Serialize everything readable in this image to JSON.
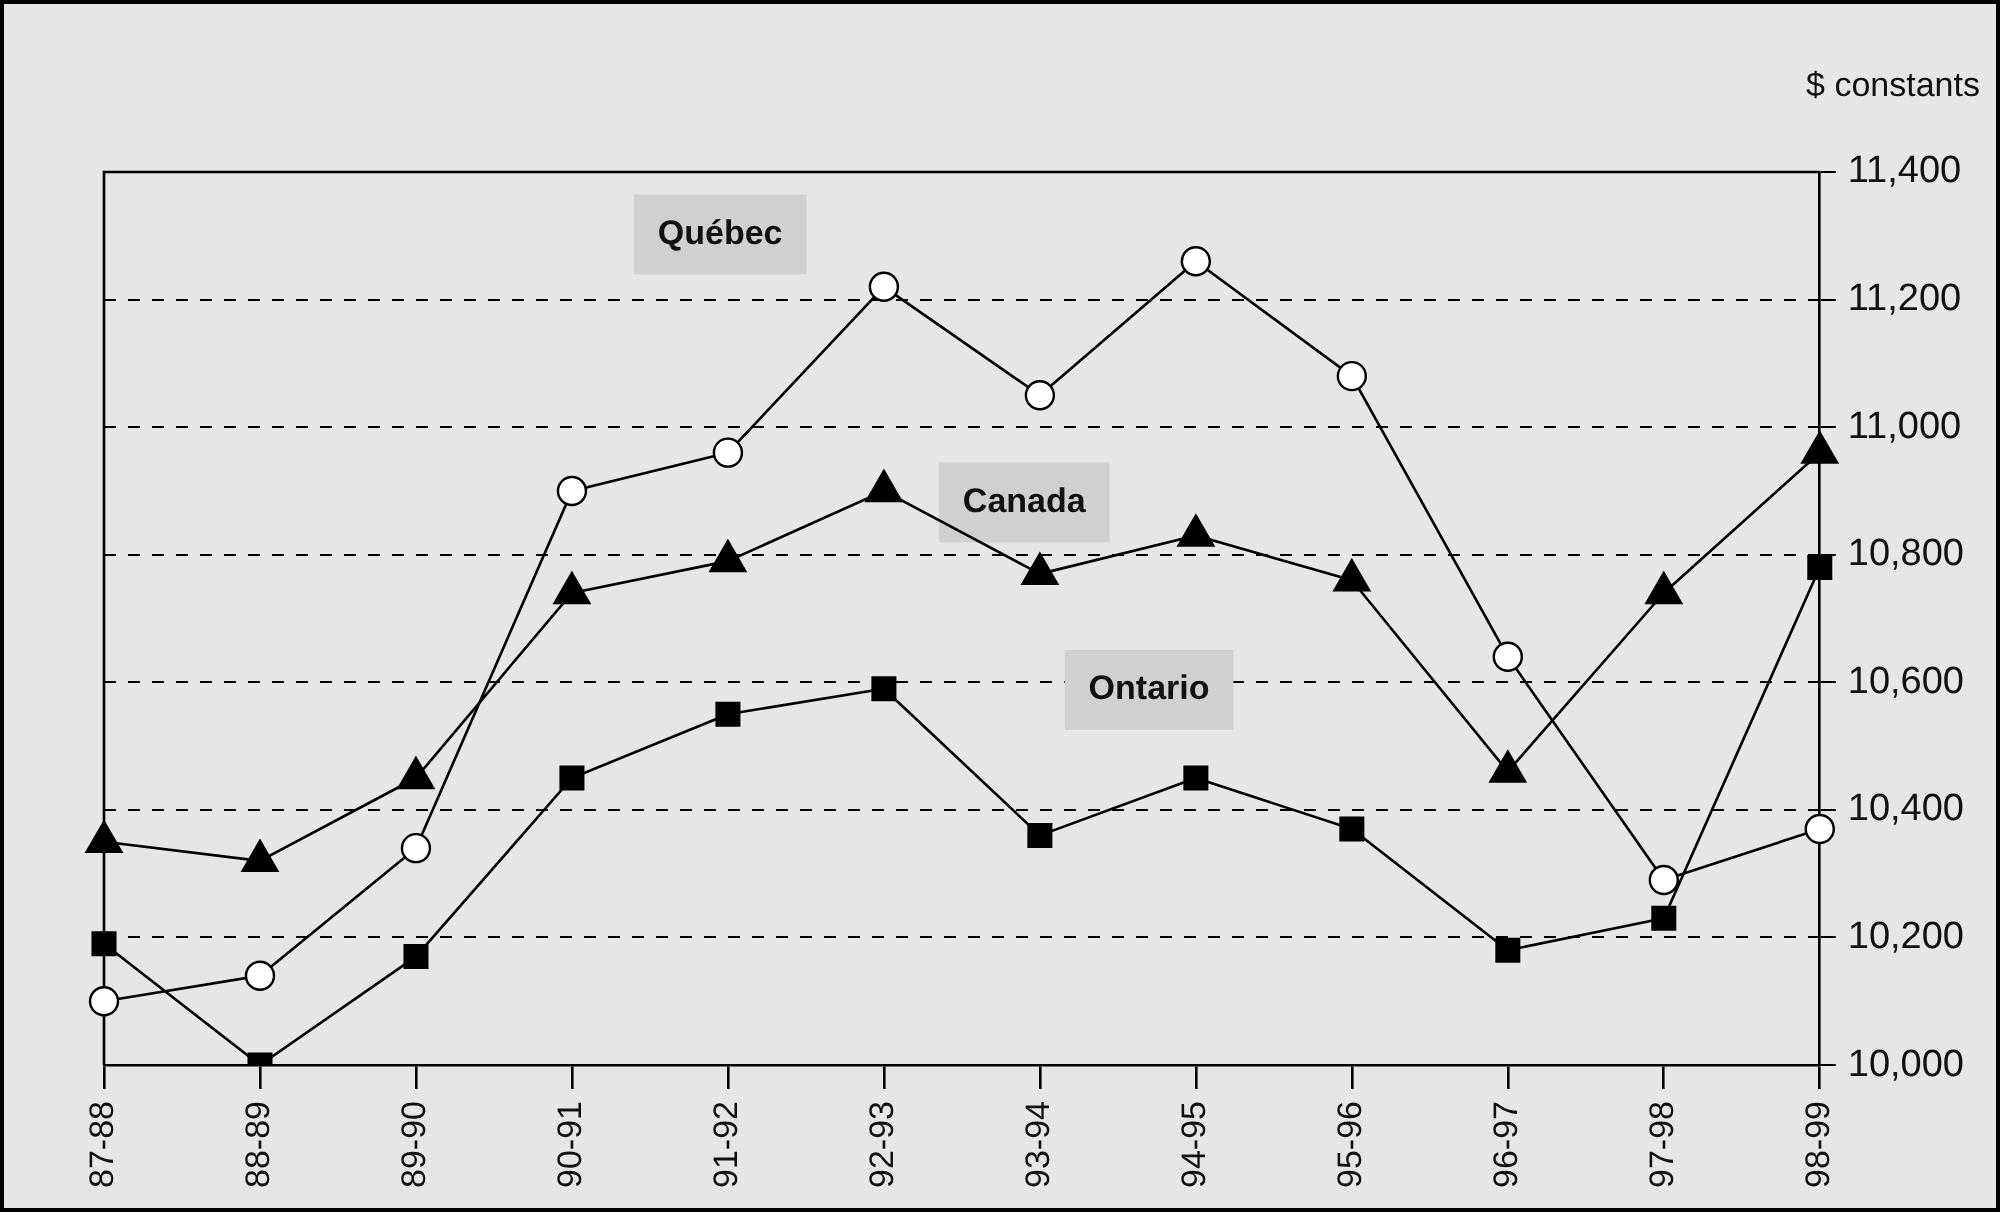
{
  "chart_data": {
    "type": "line",
    "ylabel": "$ constants",
    "categories": [
      "87-88",
      "88-89",
      "89-90",
      "90-91",
      "91-92",
      "92-93",
      "93-94",
      "94-95",
      "95-96",
      "96-97",
      "97-98",
      "98-99"
    ],
    "series": [
      {
        "name": "Québec",
        "color": "#000000",
        "marker": "circle",
        "values": [
          10100,
          10140,
          10340,
          10900,
          10960,
          11220,
          11050,
          11260,
          11080,
          10640,
          10290,
          10370
        ]
      },
      {
        "name": "Canada",
        "color": "#000000",
        "marker": "triangle",
        "values": [
          10350,
          10320,
          10450,
          10740,
          10790,
          10900,
          10770,
          10830,
          10760,
          10460,
          10740,
          10960
        ]
      },
      {
        "name": "Ontario",
        "color": "#000000",
        "marker": "square",
        "values": [
          10190,
          10000,
          10170,
          10450,
          10550,
          10590,
          10360,
          10450,
          10370,
          10180,
          10230,
          10780
        ]
      }
    ],
    "ylim": [
      10000,
      11400
    ],
    "yticks": [
      {
        "value": 10000,
        "label": "10,000"
      },
      {
        "value": 10200,
        "label": "10,200"
      },
      {
        "value": 10400,
        "label": "10,400"
      },
      {
        "value": 10600,
        "label": "10,600"
      },
      {
        "value": 10800,
        "label": "10,800"
      },
      {
        "value": 11000,
        "label": "11,000"
      },
      {
        "value": 11200,
        "label": "11,200"
      },
      {
        "value": 11400,
        "label": "11,400"
      }
    ],
    "grid": "y",
    "legend": false,
    "line_style": "solid"
  }
}
